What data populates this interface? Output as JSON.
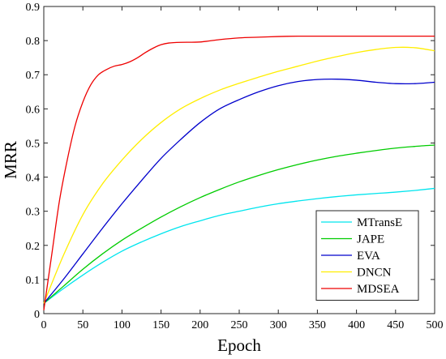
{
  "chart_data": {
    "type": "line",
    "xlabel": "Epoch",
    "ylabel": "MRR",
    "xlim": [
      0,
      500
    ],
    "ylim": [
      0,
      0.9
    ],
    "xticks": [
      0,
      50,
      100,
      150,
      200,
      250,
      300,
      350,
      400,
      450,
      500
    ],
    "yticks": [
      0,
      0.1,
      0.2,
      0.3,
      0.4,
      0.5,
      0.6,
      0.7,
      0.8,
      0.9
    ],
    "xtick_labels": [
      "0",
      "50",
      "100",
      "150",
      "200",
      "250",
      "300",
      "350",
      "400",
      "450",
      "500"
    ],
    "ytick_labels": [
      "0",
      "0.1",
      "0.2",
      "0.3",
      "0.4",
      "0.5",
      "0.6",
      "0.7",
      "0.8",
      "0.9"
    ],
    "grid": false,
    "legend_position": "bottom-right",
    "series": [
      {
        "name": "MTransE",
        "color": "#00e5ee",
        "x": [
          0,
          25,
          50,
          75,
          100,
          125,
          150,
          175,
          200,
          225,
          250,
          275,
          300,
          325,
          350,
          375,
          400,
          425,
          450,
          475,
          500
        ],
        "y": [
          0.03,
          0.073,
          0.113,
          0.15,
          0.183,
          0.21,
          0.234,
          0.255,
          0.272,
          0.288,
          0.3,
          0.312,
          0.322,
          0.33,
          0.337,
          0.343,
          0.348,
          0.352,
          0.356,
          0.361,
          0.367
        ]
      },
      {
        "name": "JAPE",
        "color": "#00cc00",
        "x": [
          0,
          25,
          50,
          75,
          100,
          125,
          150,
          175,
          200,
          225,
          250,
          275,
          300,
          325,
          350,
          375,
          400,
          425,
          450,
          475,
          500
        ],
        "y": [
          0.03,
          0.08,
          0.13,
          0.175,
          0.215,
          0.25,
          0.283,
          0.313,
          0.34,
          0.364,
          0.386,
          0.405,
          0.422,
          0.437,
          0.45,
          0.461,
          0.47,
          0.478,
          0.485,
          0.49,
          0.494
        ]
      },
      {
        "name": "EVA",
        "color": "#0000cc",
        "x": [
          0,
          25,
          50,
          75,
          100,
          125,
          150,
          175,
          200,
          225,
          250,
          275,
          300,
          325,
          350,
          375,
          400,
          425,
          450,
          475,
          500
        ],
        "y": [
          0.03,
          0.1,
          0.175,
          0.25,
          0.322,
          0.39,
          0.455,
          0.51,
          0.56,
          0.6,
          0.627,
          0.65,
          0.668,
          0.68,
          0.686,
          0.687,
          0.684,
          0.678,
          0.674,
          0.674,
          0.678
        ]
      },
      {
        "name": "DNCN",
        "color": "#ffee00",
        "x": [
          0,
          25,
          50,
          75,
          100,
          125,
          150,
          175,
          200,
          225,
          250,
          275,
          300,
          325,
          350,
          375,
          400,
          425,
          450,
          475,
          500
        ],
        "y": [
          0.03,
          0.17,
          0.29,
          0.38,
          0.45,
          0.51,
          0.56,
          0.6,
          0.63,
          0.655,
          0.675,
          0.693,
          0.71,
          0.725,
          0.74,
          0.753,
          0.765,
          0.774,
          0.78,
          0.779,
          0.77
        ]
      },
      {
        "name": "MDSEA",
        "color": "#ee0000",
        "x": [
          0,
          10,
          20,
          30,
          40,
          50,
          60,
          70,
          80,
          90,
          100,
          110,
          120,
          130,
          140,
          150,
          160,
          175,
          200,
          225,
          250,
          275,
          300,
          325,
          350,
          375,
          400,
          425,
          450,
          475,
          500
        ],
        "y": [
          0.01,
          0.17,
          0.33,
          0.45,
          0.55,
          0.62,
          0.67,
          0.7,
          0.715,
          0.725,
          0.73,
          0.738,
          0.75,
          0.765,
          0.778,
          0.788,
          0.793,
          0.795,
          0.796,
          0.803,
          0.808,
          0.81,
          0.812,
          0.813,
          0.813,
          0.813,
          0.813,
          0.813,
          0.813,
          0.813,
          0.813
        ]
      }
    ]
  }
}
